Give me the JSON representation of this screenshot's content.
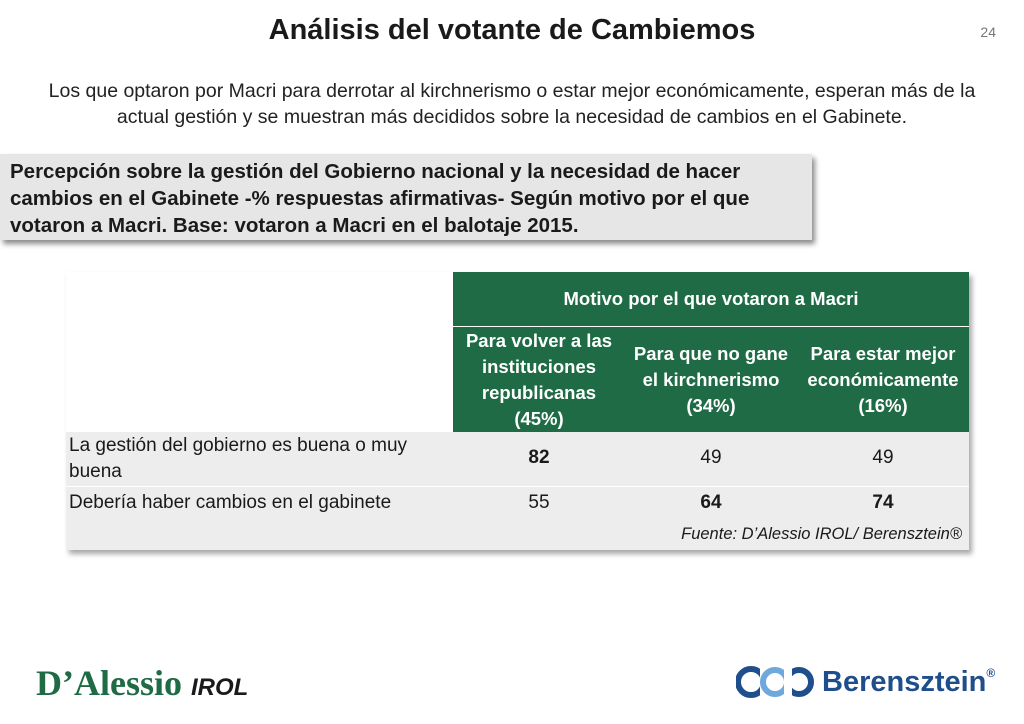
{
  "title": "Análisis del votante de Cambiemos",
  "page_number": "24",
  "subtitle": "Los que optaron por Macri para derrotar al kirchnerismo o estar mejor económicamente, esperan más de la actual gestión y se muestran más decididos sobre la necesidad de cambios en el Gabinete.",
  "callout": "Percepción sobre la gestión del Gobierno nacional y la necesidad de hacer cambios en el Gabinete -% respuestas afirmativas- Según motivo por el que votaron a Macri. Base: votaron a Macri en el balotaje 2015.",
  "table": {
    "group_header": "Motivo por el que votaron a Macri",
    "columns": [
      "Para volver a las instituciones republicanas (45%)",
      "Para que no gane el kirchnerismo (34%)",
      "Para estar mejor económicamente (16%)"
    ],
    "rows": [
      {
        "label": "La gestión del gobierno es buena o muy buena",
        "values": [
          "82",
          "49",
          "49"
        ],
        "bold": [
          true,
          false,
          false
        ]
      },
      {
        "label": "Debería haber cambios en el gabinete",
        "values": [
          "55",
          "64",
          "74"
        ],
        "bold": [
          false,
          true,
          true
        ]
      }
    ],
    "source": "Fuente: D’Alessio IROL/ Berensztein®"
  },
  "logos": {
    "left": "D’Alessio",
    "left_suffix": "IROL",
    "right": "Berensztein",
    "right_mark": "®"
  },
  "colors": {
    "header_green": "#1e6b45",
    "row_gray": "#ededed",
    "brand_blue": "#1f4e8c"
  }
}
